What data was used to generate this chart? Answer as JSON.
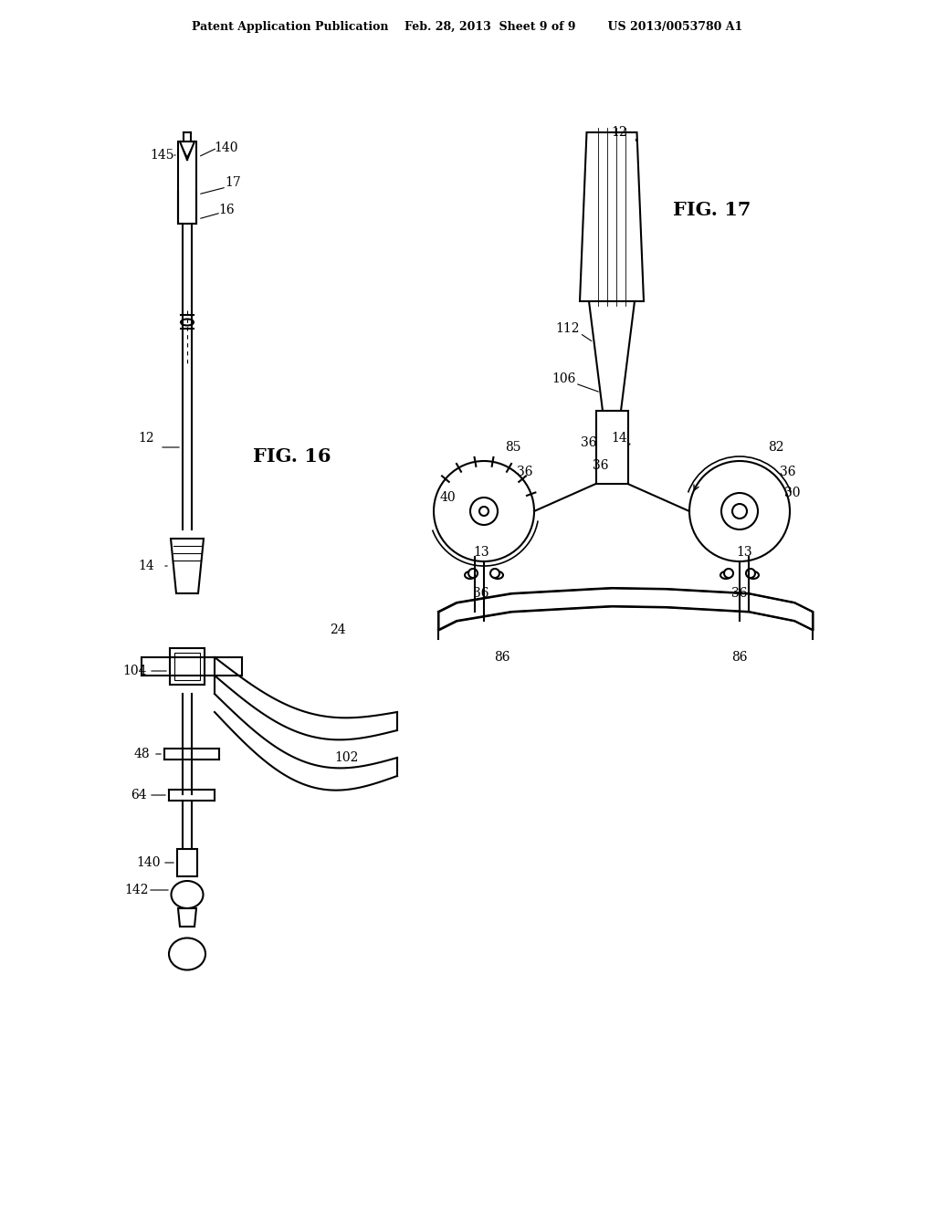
{
  "background_color": "#ffffff",
  "header_text": "Patent Application Publication    Feb. 28, 2013  Sheet 9 of 9        US 2013/0053780 A1",
  "fig16_label": "FIG. 16",
  "fig17_label": "FIG. 17",
  "line_color": "#000000",
  "line_width": 1.5,
  "label_fontsize": 10,
  "fig_label_fontsize": 14
}
